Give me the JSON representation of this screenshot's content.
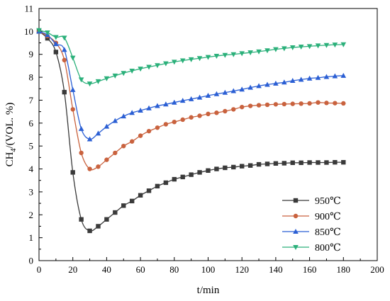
{
  "chart_data": {
    "type": "line",
    "title": "",
    "xlabel": "t/min",
    "ylabel": {
      "base": "CH",
      "sub": "4",
      "rest": "/(VOL. %)"
    },
    "xlim": [
      0,
      200
    ],
    "ylim": [
      0,
      11
    ],
    "xticks": [
      "0",
      "20",
      "40",
      "60",
      "80",
      "100",
      "120",
      "140",
      "160",
      "180",
      "200"
    ],
    "yticks": [
      "0",
      "1",
      "2",
      "3",
      "4",
      "5",
      "6",
      "7",
      "8",
      "9",
      "10",
      "11"
    ],
    "grid": false,
    "legend_position": "bottom-right",
    "series": [
      {
        "name": "950℃",
        "color": "#3a3a3a",
        "marker": "square",
        "x": [
          0,
          5,
          10,
          15,
          20,
          25,
          30,
          35,
          40,
          45,
          50,
          55,
          60,
          65,
          70,
          75,
          80,
          85,
          90,
          95,
          100,
          105,
          110,
          115,
          120,
          125,
          130,
          135,
          140,
          145,
          150,
          155,
          160,
          165,
          170,
          175,
          180
        ],
        "y": [
          10.0,
          9.7,
          9.1,
          7.35,
          3.85,
          1.8,
          1.3,
          1.5,
          1.8,
          2.1,
          2.4,
          2.6,
          2.85,
          3.05,
          3.25,
          3.4,
          3.55,
          3.65,
          3.75,
          3.85,
          3.93,
          4.0,
          4.05,
          4.08,
          4.12,
          4.15,
          4.2,
          4.22,
          4.24,
          4.25,
          4.27,
          4.27,
          4.28,
          4.28,
          4.28,
          4.29,
          4.29
        ]
      },
      {
        "name": "900℃",
        "color": "#c9623e",
        "marker": "circle",
        "x": [
          0,
          5,
          10,
          15,
          20,
          25,
          30,
          35,
          40,
          45,
          50,
          55,
          60,
          65,
          70,
          75,
          80,
          85,
          90,
          95,
          100,
          105,
          110,
          115,
          120,
          125,
          130,
          135,
          140,
          145,
          150,
          155,
          160,
          165,
          170,
          175,
          180
        ],
        "y": [
          10.0,
          9.8,
          9.5,
          8.75,
          6.6,
          4.7,
          4.0,
          4.1,
          4.4,
          4.7,
          5.0,
          5.2,
          5.45,
          5.65,
          5.8,
          5.95,
          6.05,
          6.15,
          6.25,
          6.32,
          6.4,
          6.45,
          6.52,
          6.6,
          6.7,
          6.75,
          6.78,
          6.8,
          6.82,
          6.83,
          6.84,
          6.85,
          6.86,
          6.9,
          6.88,
          6.87,
          6.86
        ]
      },
      {
        "name": "850℃",
        "color": "#2b5fd4",
        "marker": "triangle-up",
        "x": [
          0,
          5,
          10,
          15,
          20,
          25,
          30,
          35,
          40,
          45,
          50,
          55,
          60,
          65,
          70,
          75,
          80,
          85,
          90,
          95,
          100,
          105,
          110,
          115,
          120,
          125,
          130,
          135,
          140,
          145,
          150,
          155,
          160,
          165,
          170,
          175,
          180
        ],
        "y": [
          10.0,
          9.85,
          9.45,
          9.2,
          7.45,
          5.75,
          5.3,
          5.55,
          5.85,
          6.1,
          6.3,
          6.45,
          6.55,
          6.65,
          6.75,
          6.82,
          6.9,
          6.98,
          7.05,
          7.12,
          7.2,
          7.27,
          7.33,
          7.4,
          7.47,
          7.55,
          7.62,
          7.68,
          7.73,
          7.78,
          7.85,
          7.9,
          7.95,
          7.98,
          8.02,
          8.05,
          8.07
        ]
      },
      {
        "name": "800℃",
        "color": "#2bb07a",
        "marker": "triangle-down",
        "x": [
          0,
          5,
          10,
          15,
          20,
          25,
          30,
          35,
          40,
          45,
          50,
          55,
          60,
          65,
          70,
          75,
          80,
          85,
          90,
          95,
          100,
          105,
          110,
          115,
          120,
          125,
          130,
          135,
          140,
          145,
          150,
          155,
          160,
          165,
          170,
          175,
          180
        ],
        "y": [
          10.05,
          9.95,
          9.75,
          9.72,
          8.85,
          7.9,
          7.72,
          7.82,
          7.95,
          8.07,
          8.18,
          8.28,
          8.37,
          8.45,
          8.52,
          8.6,
          8.67,
          8.73,
          8.78,
          8.83,
          8.88,
          8.93,
          8.97,
          9.0,
          9.04,
          9.08,
          9.12,
          9.17,
          9.22,
          9.26,
          9.3,
          9.33,
          9.35,
          9.38,
          9.4,
          9.42,
          9.43
        ]
      }
    ]
  }
}
